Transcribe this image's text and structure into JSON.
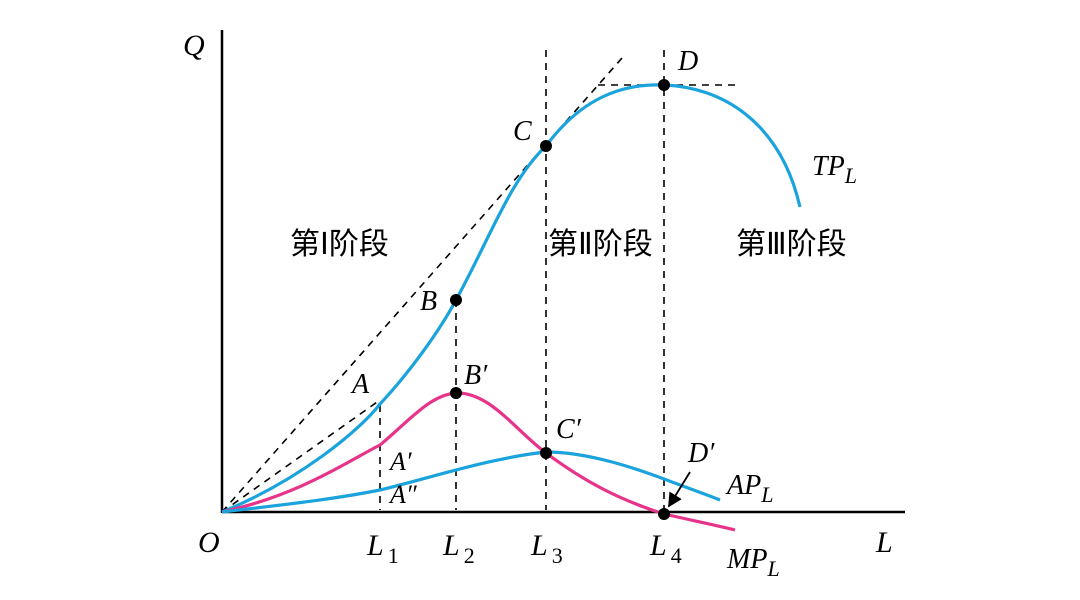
{
  "axes": {
    "y_label": "Q",
    "x_label": "L",
    "origin": "O"
  },
  "x_ticks": [
    {
      "main": "L",
      "sub": "1"
    },
    {
      "main": "L",
      "sub": "2"
    },
    {
      "main": "L",
      "sub": "3"
    },
    {
      "main": "L",
      "sub": "4"
    }
  ],
  "stages": [
    "第Ⅰ阶段",
    "第Ⅱ阶段",
    "第Ⅲ阶段"
  ],
  "curves": {
    "tp": {
      "main": "TP",
      "sub": "L",
      "color": "#1aa3dc"
    },
    "ap": {
      "main": "AP",
      "sub": "L",
      "color": "#1aa3dc"
    },
    "mp": {
      "main": "MP",
      "sub": "L",
      "color": "#e8338a"
    }
  },
  "points": {
    "A": "A",
    "B": "B",
    "C": "C",
    "D": "D",
    "A1": "A′",
    "A2": "A″",
    "B1": "B′",
    "C1": "C′",
    "D1": "D′"
  }
}
